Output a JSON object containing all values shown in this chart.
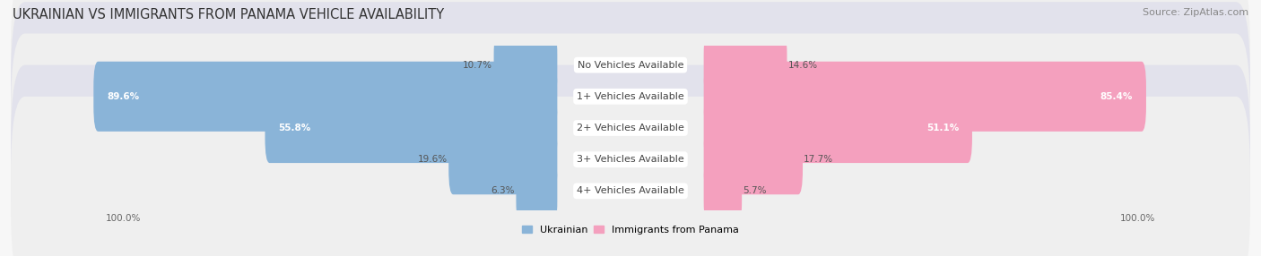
{
  "title": "Ukrainian vs Immigrants from Panama Vehicle Availability",
  "source": "Source: ZipAtlas.com",
  "categories": [
    "No Vehicles Available",
    "1+ Vehicles Available",
    "2+ Vehicles Available",
    "3+ Vehicles Available",
    "4+ Vehicles Available"
  ],
  "ukrainian_values": [
    10.7,
    89.6,
    55.8,
    19.6,
    6.3
  ],
  "panama_values": [
    14.6,
    85.4,
    51.1,
    17.7,
    5.7
  ],
  "ukrainian_color": "#8ab4d8",
  "ukrainian_color_dark": "#6699cc",
  "panama_color": "#f4a0be",
  "panama_color_dark": "#ee5599",
  "row_bg_even": "#efefef",
  "row_bg_odd": "#e2e2ec",
  "background_color": "#f7f7f7",
  "max_value": 100.0,
  "figsize": [
    14.06,
    2.86
  ],
  "dpi": 100,
  "title_fontsize": 10.5,
  "source_fontsize": 8,
  "bar_label_fontsize": 7.5,
  "category_fontsize": 8,
  "legend_fontsize": 8,
  "axis_label_fontsize": 7.5
}
